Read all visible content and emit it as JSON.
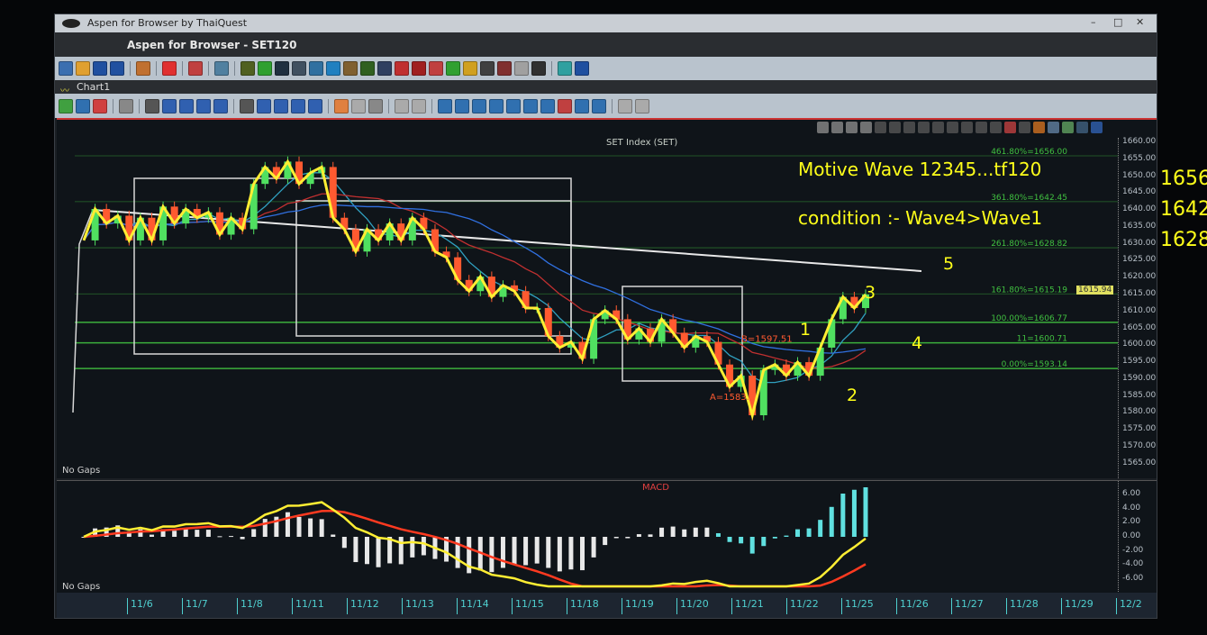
{
  "window": {
    "title": "Aspen for Browser by ThaiQuest",
    "app_title": "Aspen for Browser  - SET120",
    "chart_tab": "Chart1",
    "controls": [
      "–",
      "□",
      "✕"
    ]
  },
  "toolbar1": [
    "#3b6fb0",
    "#e0a030",
    "#2050a0",
    "#2050a0",
    "sep",
    "#c07030",
    "sep",
    "#e03030",
    "sep",
    "#c04040",
    "sep",
    "#5080a0",
    "sep",
    "#506020",
    "#30a030",
    "#203040",
    "#405060",
    "#3070a0",
    "#2080c0",
    "#806030",
    "#306020",
    "#304060",
    "#c03030",
    "#a02020",
    "#c04040",
    "#30a030",
    "#d0a020",
    "#404040",
    "#803030",
    "#a0a0a0",
    "#303030",
    "sep",
    "#30a0a0",
    "#2050a0"
  ],
  "toolbar2": [
    "#40a040",
    "#3070b0",
    "#d04040",
    "sep",
    "#888",
    "sep",
    "#555",
    "#3060b0",
    "#3060b0",
    "#3060b0",
    "#3060b0",
    "sep",
    "#555",
    "#3060b0",
    "#3060b0",
    "#3060b0",
    "#3060b0",
    "sep",
    "#e08040",
    "#aaa",
    "#888",
    "sep",
    "#aaa",
    "#aaa",
    "sep",
    "#3070b0",
    "#3070b0",
    "#3070b0",
    "#3070b0",
    "#3070b0",
    "#3070b0",
    "#3070b0",
    "#c04040",
    "#3070b0",
    "#3070b0",
    "sep",
    "#aaa",
    "#aaa"
  ],
  "toolbar3": [
    "#888",
    "#888",
    "#888",
    "#888",
    "#555",
    "#555",
    "#555",
    "#555",
    "#555",
    "#555",
    "#555",
    "#555",
    "#555",
    "#c04040",
    "#555",
    "#d07020",
    "#6080a0",
    "#60a060",
    "#406080",
    "#3060b0"
  ],
  "chart": {
    "title": "SET Index (SET)",
    "no_gaps": "No Gaps",
    "last_price": "1615.94",
    "a_label": "A=1583.8",
    "b_label": "B=1597.51",
    "fib": [
      {
        "label": "461.80%=1656.00",
        "value": 1656.0
      },
      {
        "label": "361.80%=1642.45",
        "value": 1642.45
      },
      {
        "label": "261.80%=1628.82",
        "value": 1628.82
      },
      {
        "label": "161.80%=1615.19",
        "value": 1615.19
      },
      {
        "label": "100.00%=1606.77",
        "value": 1606.77
      },
      {
        "label": "11=1600.71",
        "value": 1600.71
      },
      {
        "label": "0.00%=1593.14",
        "value": 1593.14
      }
    ],
    "price_ticks": [
      "1660.00",
      "1655.00",
      "1650.00",
      "1645.00",
      "1640.00",
      "1635.00",
      "1630.00",
      "1625.00",
      "1620.00",
      "1615.00",
      "1610.00",
      "1605.00",
      "1600.00",
      "1595.00",
      "1590.00",
      "1585.00",
      "1580.00",
      "1575.00",
      "1570.00",
      "1565.00"
    ]
  },
  "macd": {
    "title": "MACD",
    "no_gaps": "No Gaps",
    "ticks": [
      "6.00",
      "4.00",
      "2.00",
      "0.00",
      "-2.00",
      "-4.00",
      "-6.00"
    ]
  },
  "dates": [
    "11/6",
    "11/7",
    "11/8",
    "11/11",
    "11/12",
    "11/13",
    "11/14",
    "11/15",
    "11/18",
    "11/19",
    "11/20",
    "11/21",
    "11/22",
    "11/25",
    "11/26",
    "11/27",
    "11/28",
    "11/29",
    "12/2"
  ],
  "annotation": {
    "line1": "Motive Wave 12345...tf120",
    "line2": "condition :- Wave4>Wave1",
    "waves": [
      "1",
      "2",
      "3",
      "4",
      "5"
    ],
    "targets": [
      "1656",
      "1642",
      "1628"
    ]
  },
  "colors": {
    "zigzag": "#ffee33",
    "up": "#50e060",
    "down": "#ff5a30",
    "fib": "#40c040",
    "ma_blue": "#3070e0",
    "ma_red": "#c03030",
    "ma_cyan": "#30a0c0",
    "macd": "#ffee33",
    "signal": "#ff3a20"
  },
  "chart_data": {
    "type": "line",
    "ylim": [
      1562,
      1660
    ],
    "closes": [
      1631,
      1640.3,
      1636,
      1638.3,
      1631,
      1637.7,
      1631,
      1641,
      1636,
      1640.3,
      1637.7,
      1639.3,
      1632.7,
      1637.7,
      1634.3,
      1647.7,
      1652.7,
      1649.3,
      1654.3,
      1647.7,
      1651,
      1652.7,
      1637.7,
      1634.3,
      1627.7,
      1634.3,
      1631,
      1636,
      1631,
      1637.7,
      1634.3,
      1627.7,
      1626,
      1619.3,
      1616,
      1620.3,
      1614.3,
      1617.7,
      1616,
      1611,
      1611,
      1602.7,
      1599.3,
      1601,
      1596,
      1607.7,
      1610.3,
      1607.7,
      1601.7,
      1605,
      1601,
      1607.7,
      1603.7,
      1599.3,
      1602.7,
      1601,
      1594.3,
      1587.7,
      1591,
      1579.3,
      1592.7,
      1594.3,
      1591,
      1595,
      1591,
      1599.3,
      1607.7,
      1614.3,
      1611,
      1615
    ]
  }
}
